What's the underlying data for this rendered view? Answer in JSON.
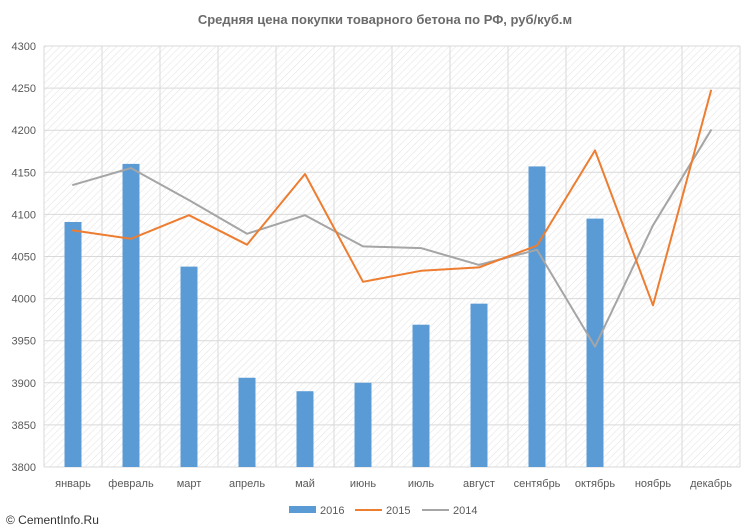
{
  "chart_data": {
    "type": "bar+line",
    "title": "Средняя цена покупки товарного бетона по РФ, руб/куб.м",
    "categories": [
      "январь",
      "февраль",
      "март",
      "апрель",
      "май",
      "июнь",
      "июль",
      "август",
      "сентябрь",
      "октябрь",
      "ноябрь",
      "декабрь"
    ],
    "ylim": [
      3800,
      4300
    ],
    "yticks": [
      3800,
      3850,
      3900,
      3950,
      4000,
      4050,
      4100,
      4150,
      4200,
      4250,
      4300
    ],
    "grid": true,
    "legend_position": "bottom",
    "series": [
      {
        "name": "2016",
        "kind": "bar",
        "color": "#5b9bd5",
        "values": [
          4091,
          4160,
          4038,
          3906,
          3890,
          3900,
          3969,
          3994,
          4157,
          4095,
          null,
          null
        ]
      },
      {
        "name": "2015",
        "kind": "line",
        "color": "#ed7d31",
        "values": [
          4081,
          4071,
          4099,
          4064,
          4148,
          4020,
          4033,
          4037,
          4063,
          4176,
          3992,
          4247
        ]
      },
      {
        "name": "2014",
        "kind": "line",
        "color": "#a5a5a5",
        "values": [
          4135,
          4155,
          4117,
          4077,
          4099,
          4062,
          4060,
          4040,
          4058,
          3943,
          4087,
          4200
        ]
      }
    ]
  },
  "watermark": "© CementInfo.Ru"
}
